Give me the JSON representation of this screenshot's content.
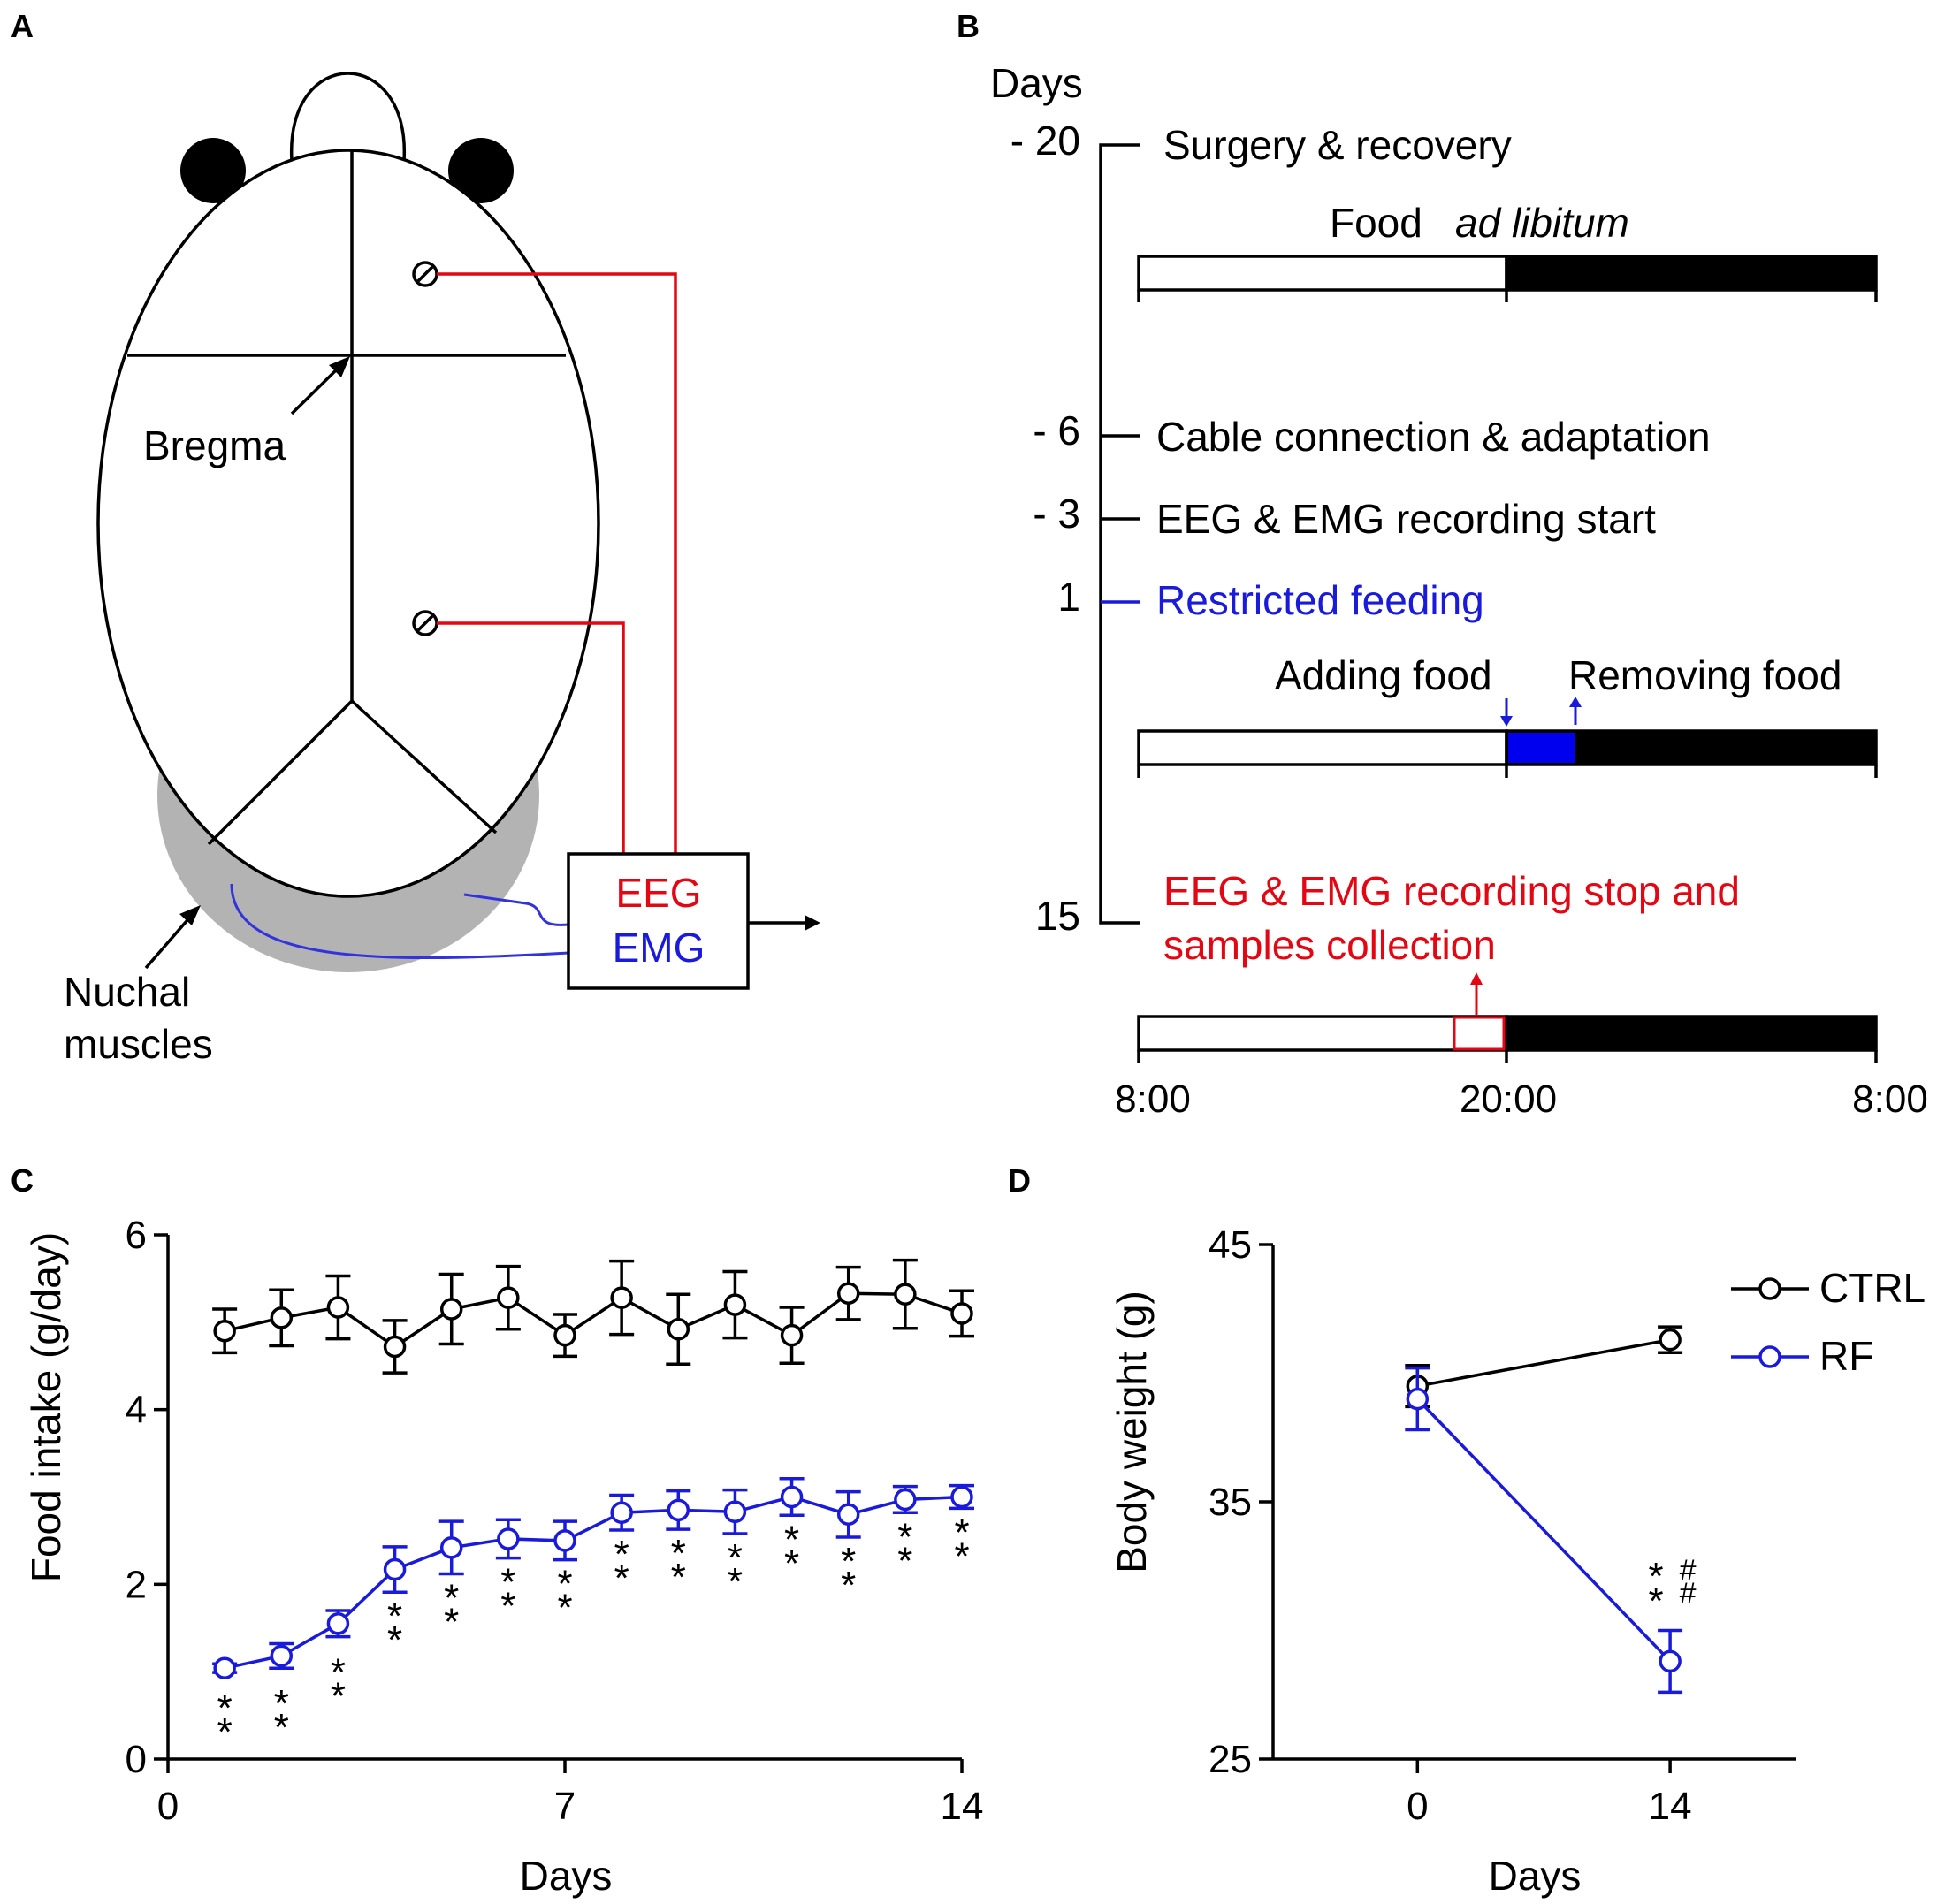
{
  "panels": {
    "a": {
      "letter": "A"
    },
    "b": {
      "letter": "B"
    },
    "c": {
      "letter": "C"
    },
    "d": {
      "letter": "D"
    }
  },
  "colors": {
    "black": "#000000",
    "red": "#e30613",
    "blue": "#1a1adb",
    "fill_blue": "#0000ee",
    "grey": "#b3b3b3"
  },
  "panel_a": {
    "bregma": "Bregma",
    "nuchal_line1": "Nuchal",
    "nuchal_line2": "muscles",
    "eeg": "EEG",
    "emg": "EMG"
  },
  "panel_b": {
    "days_header": "Days",
    "day_marks": [
      "- 20",
      "- 6",
      "- 3",
      "1",
      "15"
    ],
    "surgery": "Surgery & recovery",
    "food": "Food",
    "ad_libitum": "ad libitum",
    "cable": "Cable connection & adaptation",
    "recording_start": "EEG & EMG recording start",
    "restricted": "Restricted feeding",
    "adding_food": "Adding food",
    "removing_food": "Removing food",
    "stop_line1": "EEG & EMG recording stop and",
    "stop_line2": "samples collection",
    "time_labels": [
      "8:00",
      "20:00",
      "8:00"
    ]
  },
  "chart_data": [
    {
      "id": "C",
      "type": "line",
      "xlabel": "Days",
      "ylabel": "Food intake (g/day)",
      "xlim": [
        0,
        14
      ],
      "ylim": [
        0,
        6
      ],
      "xticks": [
        0,
        7,
        14
      ],
      "yticks": [
        0,
        2,
        4,
        6
      ],
      "series": [
        {
          "name": "CTRL",
          "color": "#000000",
          "x": [
            1,
            2,
            3,
            4,
            5,
            6,
            7,
            8,
            9,
            10,
            11,
            12,
            13,
            14
          ],
          "values": [
            4.9,
            5.05,
            5.17,
            4.72,
            5.15,
            5.28,
            4.85,
            5.28,
            4.92,
            5.2,
            4.85,
            5.33,
            5.32,
            5.1
          ],
          "errors": [
            0.25,
            0.32,
            0.36,
            0.3,
            0.4,
            0.36,
            0.24,
            0.42,
            0.4,
            0.38,
            0.32,
            0.3,
            0.39,
            0.26
          ]
        },
        {
          "name": "RF",
          "color": "#1a1adb",
          "x": [
            1,
            2,
            3,
            4,
            5,
            6,
            7,
            8,
            9,
            10,
            11,
            12,
            13,
            14
          ],
          "values": [
            1.04,
            1.18,
            1.55,
            2.17,
            2.42,
            2.52,
            2.5,
            2.82,
            2.85,
            2.83,
            3.0,
            2.8,
            2.97,
            3.0
          ],
          "errors": [
            0.05,
            0.14,
            0.15,
            0.26,
            0.3,
            0.22,
            0.22,
            0.2,
            0.22,
            0.25,
            0.21,
            0.26,
            0.15,
            0.13
          ]
        }
      ],
      "annotations": {
        "symbol": "*",
        "x": [
          1,
          2,
          3,
          4,
          5,
          6,
          7,
          8,
          9,
          10,
          11,
          12,
          13,
          14
        ]
      }
    },
    {
      "id": "D",
      "type": "line",
      "xlabel": "Days",
      "ylabel": "Body weight (g)",
      "xlim": [
        -8,
        21
      ],
      "ylim": [
        25,
        45
      ],
      "xticks": [
        0,
        14
      ],
      "yticks": [
        25,
        35,
        45
      ],
      "legend_position": "top-right",
      "series": [
        {
          "name": "CTRL",
          "color": "#000000",
          "x": [
            0,
            14
          ],
          "values": [
            39.5,
            41.3
          ],
          "errors": [
            0.8,
            0.5
          ]
        },
        {
          "name": "RF",
          "color": "#1a1adb",
          "x": [
            0,
            14
          ],
          "values": [
            39.0,
            28.8
          ],
          "errors": [
            1.2,
            1.2
          ]
        }
      ],
      "annotations": {
        "star_symbol": "*",
        "hash_symbol": "#",
        "x": 14
      }
    }
  ]
}
